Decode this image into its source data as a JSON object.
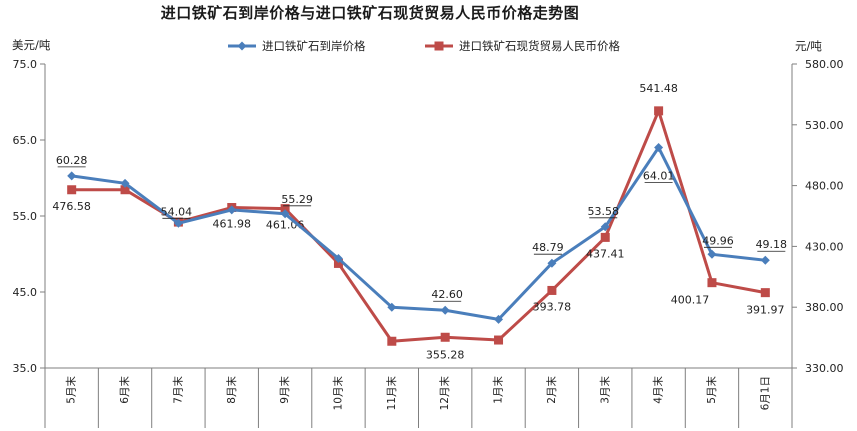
{
  "chart_data": {
    "type": "line",
    "title": "进口铁矿石到岸价格与进口铁矿石现货贸易人民币价格走势图",
    "y_left_unit": "美元/吨",
    "y_right_unit": "元/吨",
    "legend_position": "top",
    "grid": false,
    "categories": [
      "5月末",
      "6月末",
      "7月末",
      "8月末",
      "9月末",
      "10月末",
      "11月末",
      "12月末",
      "1月末",
      "2月末",
      "3月末",
      "4月末",
      "5月末",
      "6月1日"
    ],
    "y_left": {
      "range": [
        35,
        75
      ],
      "ticks": [
        "35.0",
        "45.0",
        "55.0",
        "65.0",
        "75.0"
      ]
    },
    "y_right": {
      "range": [
        330,
        580
      ],
      "ticks": [
        "330.00",
        "380.00",
        "430.00",
        "480.00",
        "530.00",
        "580.00"
      ]
    },
    "series": [
      {
        "name": "进口铁矿石到岸价格",
        "axis": "left",
        "color": "#4a7ebb",
        "marker": "diamond",
        "values": [
          60.28,
          59.3,
          54.04,
          55.8,
          55.29,
          49.4,
          43.0,
          42.6,
          41.4,
          48.79,
          53.58,
          64.01,
          49.96,
          49.18
        ],
        "labels": [
          "60.28",
          "",
          "54.04",
          "",
          "55.29",
          "",
          "",
          "42.60",
          "",
          "48.79",
          "53.58",
          "64.01",
          "49.96",
          "49.18"
        ]
      },
      {
        "name": "进口铁矿石现货贸易人民币价格",
        "axis": "right",
        "color": "#be4b48",
        "marker": "square",
        "values": [
          476.58,
          476.6,
          450.0,
          461.98,
          461.06,
          416.0,
          352.0,
          355.28,
          353.0,
          393.78,
          437.41,
          541.48,
          400.17,
          391.97
        ],
        "labels": [
          "476.58",
          "",
          "",
          "461.98",
          "461.06",
          "",
          "",
          "355.28",
          "",
          "393.78",
          "437.41",
          "541.48",
          "400.17",
          "391.97"
        ]
      }
    ]
  }
}
